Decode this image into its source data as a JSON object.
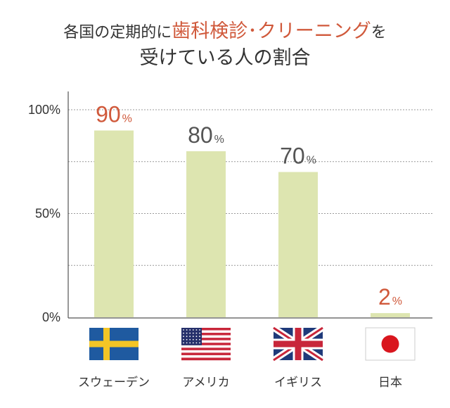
{
  "title": {
    "prefix": "各国の定期的に",
    "highlight": "歯科検診･クリーニング",
    "suffix": "を",
    "line2": "受けている人の割合"
  },
  "colors": {
    "bar": "#dde5b0",
    "highlight": "#d0593b",
    "label": "#555555",
    "grid": "#999999",
    "axis": "#555555"
  },
  "chart_data": {
    "type": "bar",
    "categories": [
      "スウェーデン",
      "アメリカ",
      "イギリス",
      "日本"
    ],
    "values": [
      90,
      80,
      70,
      2
    ],
    "value_unit": "%",
    "highlighted": [
      true,
      false,
      false,
      true
    ],
    "flags": [
      "sweden-flag",
      "usa-flag",
      "uk-flag",
      "japan-flag"
    ],
    "yticks": [
      "0%",
      "50%",
      "100%"
    ],
    "ylim": [
      0,
      100
    ],
    "gridlines": [
      25,
      50,
      75,
      100
    ],
    "grid": true
  }
}
